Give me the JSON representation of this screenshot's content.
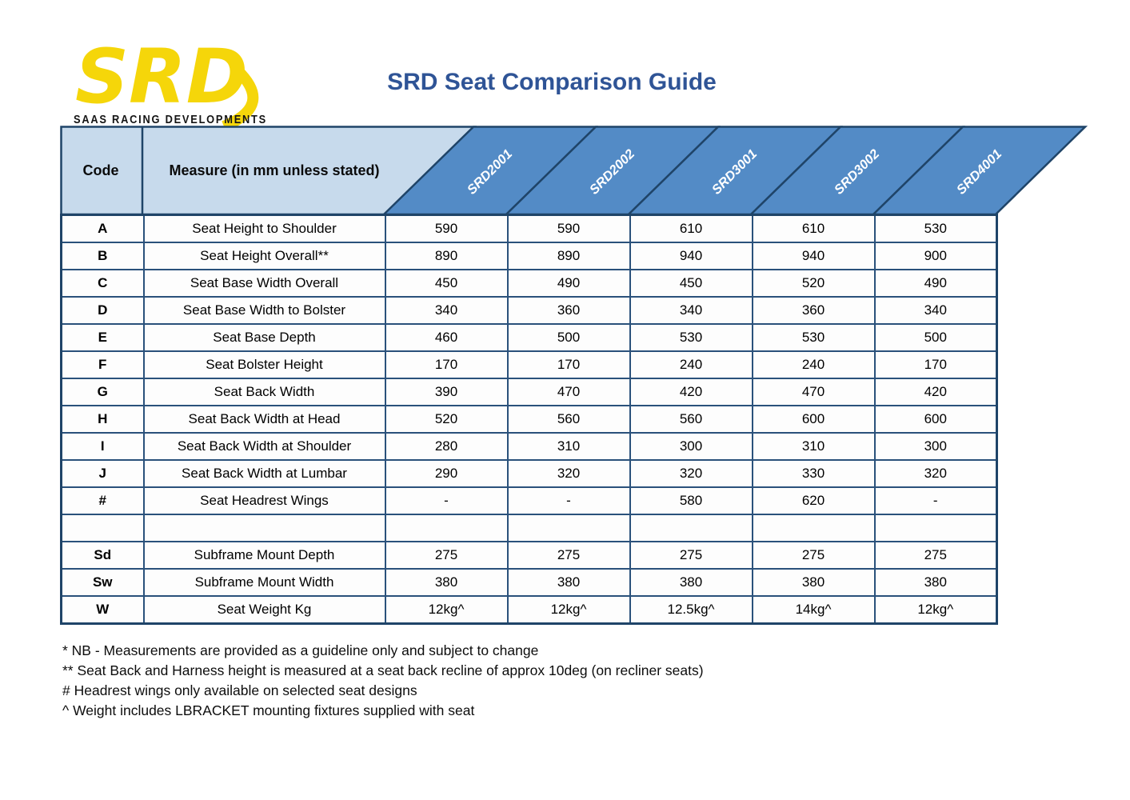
{
  "page_title": "SRD Seat Comparison Guide",
  "logo": {
    "acronym": "SRD",
    "company": "SAAS RACING DEVELOPMENTS"
  },
  "table": {
    "code_header": "Code",
    "measure_header": "Measure (in mm unless stated)",
    "models": [
      "SRD2001",
      "SRD2002",
      "SRD3001",
      "SRD3002",
      "SRD4001"
    ],
    "rows": [
      {
        "code": "A",
        "measure": "Seat Height to Shoulder",
        "values": [
          "590",
          "590",
          "610",
          "610",
          "530"
        ]
      },
      {
        "code": "B",
        "measure": "Seat Height Overall**",
        "values": [
          "890",
          "890",
          "940",
          "940",
          "900"
        ]
      },
      {
        "code": "C",
        "measure": "Seat Base Width Overall",
        "values": [
          "450",
          "490",
          "450",
          "520",
          "490"
        ]
      },
      {
        "code": "D",
        "measure": "Seat Base Width to Bolster",
        "values": [
          "340",
          "360",
          "340",
          "360",
          "340"
        ]
      },
      {
        "code": "E",
        "measure": "Seat Base Depth",
        "values": [
          "460",
          "500",
          "530",
          "530",
          "500"
        ]
      },
      {
        "code": "F",
        "measure": "Seat Bolster Height",
        "values": [
          "170",
          "170",
          "240",
          "240",
          "170"
        ]
      },
      {
        "code": "G",
        "measure": "Seat Back Width",
        "values": [
          "390",
          "470",
          "420",
          "470",
          "420"
        ]
      },
      {
        "code": "H",
        "measure": "Seat Back Width at Head",
        "values": [
          "520",
          "560",
          "560",
          "600",
          "600"
        ]
      },
      {
        "code": "I",
        "measure": "Seat Back Width at Shoulder",
        "values": [
          "280",
          "310",
          "300",
          "310",
          "300"
        ]
      },
      {
        "code": "J",
        "measure": "Seat Back Width at Lumbar",
        "values": [
          "290",
          "320",
          "320",
          "330",
          "320"
        ]
      },
      {
        "code": "#",
        "measure": "Seat Headrest Wings",
        "values": [
          "-",
          "-",
          "580",
          "620",
          "-"
        ]
      },
      {
        "code": "",
        "measure": "",
        "values": [
          "",
          "",
          "",
          "",
          ""
        ]
      },
      {
        "code": "Sd",
        "measure": "Subframe Mount Depth",
        "values": [
          "275",
          "275",
          "275",
          "275",
          "275"
        ]
      },
      {
        "code": "Sw",
        "measure": "Subframe Mount Width",
        "values": [
          "380",
          "380",
          "380",
          "380",
          "380"
        ]
      },
      {
        "code": "W",
        "measure": "Seat Weight Kg",
        "values": [
          "12kg^",
          "12kg^",
          "12.5kg^",
          "14kg^",
          "12kg^"
        ]
      }
    ]
  },
  "footnotes": [
    "* NB - Measurements are provided as a guideline only and subject to change",
    "** Seat Back and Harness height is measured at a seat back recline of approx 10deg (on recliner seats)",
    "# Headrest wings only available on selected seat designs",
    "^ Weight includes LBRACKET mounting fixtures supplied with seat"
  ],
  "colors": {
    "title_blue": "#2F5496",
    "header_light_blue": "#C7DAEC",
    "header_dark_blue": "#538BC6",
    "table_border": "#1F4468",
    "logo_yellow": "#F5D60A"
  }
}
